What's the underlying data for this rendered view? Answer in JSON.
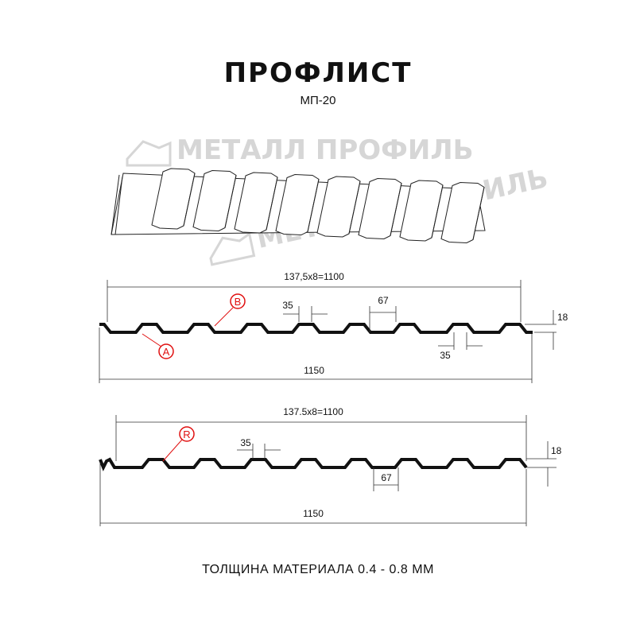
{
  "header": {
    "title": "ПРОФЛИСТ",
    "subtitle": "МП-20"
  },
  "watermark": {
    "text": "МЕТАЛЛ ПРОФИЛЬ",
    "color": "#d6d6d6"
  },
  "profile_top": {
    "pitch_label": "137,5x8=1100",
    "width_label": "1150",
    "rib_top_label": "35",
    "rib_bottom_label": "35",
    "gap_label": "67",
    "height_label": "18",
    "marker_a": "A",
    "marker_b": "B"
  },
  "profile_bottom": {
    "pitch_label": "137.5x8=1100",
    "width_label": "1150",
    "rib_top_label": "35",
    "gap_label": "67",
    "height_label": "18",
    "marker_r": "R"
  },
  "footer": {
    "thickness": "ТОЛЩИНА МАТЕРИАЛА 0.4 - 0.8 ММ"
  },
  "colors": {
    "marker": "#e01010",
    "profile": "#111111"
  }
}
